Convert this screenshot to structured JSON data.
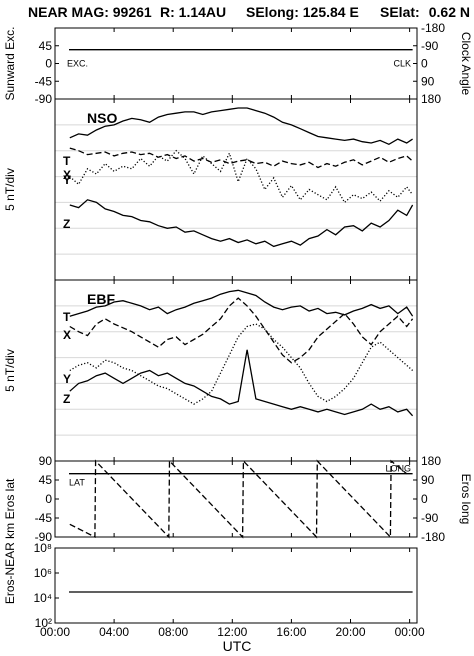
{
  "header": {
    "title": "NEAR MAG: 99261",
    "r": "R: 1.14AU",
    "selong": "SElong: 125.84 E",
    "selat": "SElat:",
    "selat_val": "0.62 N"
  },
  "colors": {
    "ink": "#000000",
    "grid": "#d8d8d8"
  },
  "chart_data": [
    {
      "type": "line",
      "panel": "sunward",
      "ylabel": "Sunward Exc.",
      "ylabel_right": "Clock Angle",
      "yticks": [
        "45",
        "0",
        "-45",
        "-90"
      ],
      "yticks_right": [
        "180",
        "90",
        "0",
        "-90",
        "-180"
      ],
      "ylim": [
        -90,
        90
      ],
      "ylim_right": [
        -180,
        180
      ],
      "annotations": [
        "EXC.",
        "CLK"
      ],
      "series": [
        {
          "name": "EXC.",
          "x": [
            0.95,
            24.2
          ],
          "values": [
            35,
            35
          ]
        }
      ]
    },
    {
      "type": "line",
      "panel": "nso",
      "title": "NSO",
      "ylabel": "5 nT/div",
      "series_labels": [
        "T",
        "X",
        "Y",
        "Z"
      ],
      "x": [
        1.0,
        1.6,
        2.2,
        2.8,
        3.4,
        4.0,
        4.6,
        5.2,
        5.8,
        6.4,
        7.0,
        7.6,
        8.2,
        8.8,
        9.4,
        10.0,
        10.6,
        11.2,
        11.8,
        12.4,
        13.0,
        13.6,
        14.2,
        14.8,
        15.4,
        16.0,
        16.6,
        17.2,
        17.8,
        18.4,
        19.0,
        19.6,
        20.2,
        20.8,
        21.4,
        22.0,
        22.6,
        23.2,
        23.8,
        24.2
      ],
      "series": [
        {
          "name": "T",
          "style": "solid",
          "values": [
            11.0,
            11.3,
            11.2,
            11.6,
            11.9,
            12.0,
            12.3,
            12.5,
            12.4,
            12.2,
            12.6,
            12.8,
            12.9,
            13.0,
            13.0,
            12.8,
            13.0,
            13.1,
            13.2,
            13.3,
            13.3,
            13.1,
            12.9,
            12.6,
            12.2,
            12.0,
            11.7,
            11.4,
            11.1,
            11.0,
            10.9,
            10.8,
            10.9,
            10.7,
            10.6,
            10.8,
            10.5,
            10.9,
            10.6,
            10.9
          ]
        },
        {
          "name": "X",
          "style": "dashed",
          "values": [
            10.2,
            10.0,
            9.7,
            9.8,
            9.9,
            9.6,
            9.8,
            9.9,
            9.7,
            9.8,
            9.5,
            9.7,
            9.4,
            9.6,
            9.2,
            9.4,
            9.1,
            9.3,
            9.0,
            9.2,
            9.3,
            9.0,
            9.1,
            8.8,
            9.2,
            9.0,
            8.9,
            9.1,
            8.7,
            9.0,
            8.8,
            9.1,
            9.3,
            8.9,
            9.2,
            9.5,
            9.1,
            9.4,
            9.6,
            9.2
          ]
        },
        {
          "name": "Y",
          "style": "dotted",
          "values": [
            8.0,
            7.4,
            8.6,
            8.2,
            9.0,
            8.4,
            8.8,
            8.6,
            9.4,
            8.8,
            9.6,
            9.2,
            10.0,
            9.4,
            8.2,
            9.6,
            9.0,
            8.4,
            9.8,
            7.6,
            9.4,
            8.6,
            7.0,
            7.9,
            6.4,
            7.3,
            6.2,
            7.0,
            6.6,
            6.2,
            7.2,
            6.0,
            6.6,
            6.3,
            6.8,
            6.1,
            6.9,
            6.4,
            7.2,
            6.6
          ]
        },
        {
          "name": "Z",
          "style": "solid",
          "values": [
            5.8,
            5.6,
            6.2,
            6.0,
            5.5,
            5.3,
            5.0,
            4.9,
            4.6,
            4.5,
            4.2,
            4.0,
            4.1,
            3.7,
            3.8,
            3.5,
            3.2,
            3.0,
            3.2,
            2.9,
            3.1,
            2.8,
            3.0,
            2.6,
            2.8,
            3.0,
            2.7,
            3.2,
            3.4,
            3.9,
            3.5,
            4.1,
            4.2,
            3.8,
            4.4,
            4.1,
            4.6,
            5.4,
            5.0,
            5.8
          ]
        }
      ]
    },
    {
      "type": "line",
      "panel": "ebf",
      "title": "EBF",
      "ylabel": "5 nT/div",
      "series_labels": [
        "T",
        "X",
        "Y",
        "Z"
      ],
      "x": [
        1.0,
        1.6,
        2.2,
        2.8,
        3.4,
        4.0,
        4.6,
        5.2,
        5.8,
        6.4,
        7.0,
        7.6,
        8.2,
        8.8,
        9.4,
        10.0,
        10.6,
        11.2,
        11.8,
        12.4,
        13.0,
        13.6,
        14.2,
        14.8,
        15.4,
        16.0,
        16.6,
        17.2,
        17.8,
        18.4,
        19.0,
        19.6,
        20.2,
        20.8,
        21.4,
        22.0,
        22.6,
        23.2,
        23.8,
        24.2
      ],
      "series": [
        {
          "name": "T",
          "style": "solid",
          "values": [
            11.2,
            11.4,
            11.6,
            11.9,
            12.0,
            12.3,
            12.4,
            12.2,
            12.0,
            11.7,
            11.9,
            11.4,
            11.7,
            11.9,
            12.2,
            12.4,
            12.6,
            12.9,
            13.1,
            13.2,
            13.0,
            12.8,
            12.3,
            11.9,
            11.7,
            11.9,
            12.0,
            11.6,
            11.8,
            11.4,
            11.5,
            11.3,
            11.6,
            11.8,
            12.1,
            11.8,
            12.0,
            11.4,
            11.9,
            11.2
          ]
        },
        {
          "name": "X",
          "style": "dashed",
          "values": [
            10.4,
            10.0,
            9.7,
            10.6,
            11.0,
            10.6,
            10.3,
            10.0,
            9.6,
            9.2,
            8.8,
            9.4,
            9.6,
            9.0,
            9.4,
            9.8,
            10.4,
            11.0,
            12.0,
            12.6,
            12.0,
            11.2,
            10.2,
            9.2,
            8.2,
            7.6,
            8.0,
            8.6,
            9.6,
            10.2,
            10.8,
            11.4,
            10.6,
            9.6,
            9.0,
            10.0,
            10.6,
            11.2,
            10.4,
            11.0
          ]
        },
        {
          "name": "Y",
          "style": "dotted",
          "values": [
            7.0,
            7.4,
            7.6,
            7.2,
            7.8,
            7.6,
            7.2,
            7.0,
            6.6,
            6.2,
            5.8,
            5.6,
            5.2,
            4.8,
            4.4,
            4.8,
            5.4,
            6.8,
            8.2,
            9.6,
            10.4,
            10.6,
            10.2,
            9.4,
            8.8,
            8.0,
            7.2,
            6.0,
            5.0,
            4.6,
            5.0,
            5.6,
            6.4,
            7.6,
            8.8,
            9.2,
            8.6,
            8.0,
            7.4,
            7.0
          ]
        },
        {
          "name": "Z",
          "style": "solid",
          "values": [
            5.4,
            6.0,
            6.2,
            6.6,
            6.8,
            6.4,
            6.0,
            6.4,
            6.8,
            7.0,
            6.6,
            6.8,
            6.4,
            6.0,
            5.8,
            5.4,
            5.0,
            4.8,
            4.4,
            4.6,
            8.6,
            4.8,
            4.6,
            4.4,
            4.2,
            4.0,
            4.2,
            4.0,
            3.8,
            4.0,
            3.8,
            3.6,
            3.8,
            4.0,
            4.4,
            4.0,
            4.2,
            3.8,
            4.0,
            3.5
          ]
        }
      ]
    },
    {
      "type": "line",
      "panel": "eros",
      "ylabel": "Eros lat",
      "ylabel_right": "Eros long",
      "yticks": [
        "90",
        "45",
        "0",
        "-45",
        "-90"
      ],
      "yticks_right": [
        "180",
        "90",
        "0",
        "-90",
        "-180"
      ],
      "ylim": [
        -90,
        90
      ],
      "ylim_right": [
        -180,
        180
      ],
      "annotations": [
        "LAT",
        "LONG"
      ],
      "series": [
        {
          "name": "LAT",
          "style": "solid",
          "x": [
            0.95,
            24.2
          ],
          "values": [
            60,
            60
          ]
        },
        {
          "name": "LONG",
          "style": "dashed",
          "x": [
            1.0,
            2.7,
            2.75,
            7.7,
            7.75,
            12.7,
            12.75,
            17.7,
            17.75,
            22.7,
            22.75,
            23.8
          ],
          "values": [
            -120,
            -180,
            180,
            -180,
            180,
            -180,
            180,
            -180,
            180,
            -180,
            180,
            120
          ]
        }
      ]
    },
    {
      "type": "line",
      "panel": "range",
      "ylabel": "Eros-NEAR km",
      "yticks": [
        "10⁸",
        "10⁶",
        "10⁴",
        "10²"
      ],
      "scale": "log",
      "ylim": [
        100,
        100000000
      ],
      "series": [
        {
          "name": "Eros-NEAR km",
          "style": "solid",
          "x": [
            0.95,
            24.2
          ],
          "values": [
            30000,
            30000
          ]
        }
      ]
    }
  ],
  "xaxis": {
    "label": "UTC",
    "ticks": [
      "00:00",
      "04:00",
      "08:00",
      "12:00",
      "16:00",
      "20:00",
      "00:00"
    ],
    "range": [
      0,
      24.5
    ]
  }
}
